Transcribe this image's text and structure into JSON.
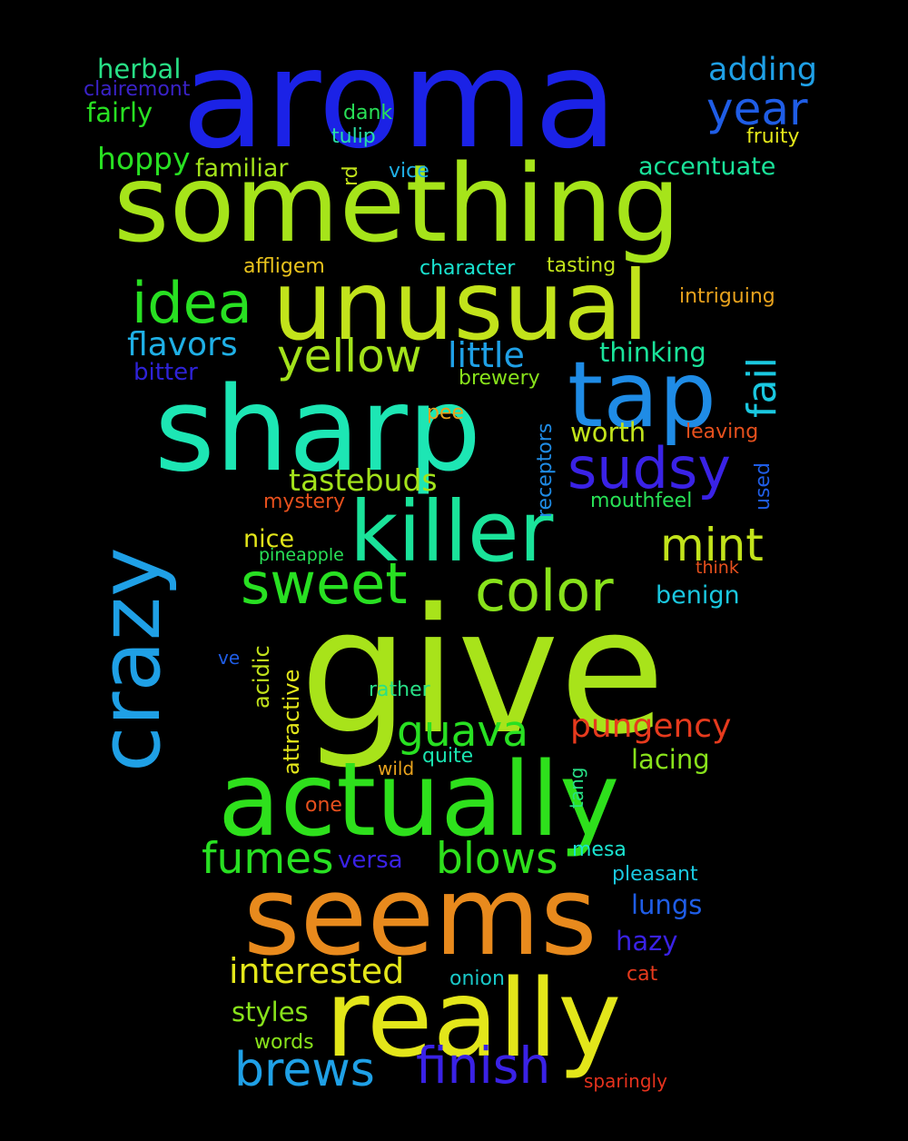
{
  "words": [
    {
      "text": "aroma",
      "color": "#1b22e6"
    },
    {
      "text": "something",
      "color": "#a6e41a"
    },
    {
      "text": "unusual",
      "color": "#c2e31b"
    },
    {
      "text": "sharp",
      "color": "#1de6b4"
    },
    {
      "text": "give",
      "color": "#a8e31a"
    },
    {
      "text": "killer",
      "color": "#1ae39a"
    },
    {
      "text": "crazy",
      "color": "#1fa0e6"
    },
    {
      "text": "actually",
      "color": "#2ee01c"
    },
    {
      "text": "seems",
      "color": "#e88a1d"
    },
    {
      "text": "really",
      "color": "#e3e61a"
    },
    {
      "text": "tap",
      "color": "#1f8ce6"
    },
    {
      "text": "sudsy",
      "color": "#3a22e6"
    },
    {
      "text": "idea",
      "color": "#28e022"
    },
    {
      "text": "yellow",
      "color": "#a2e21b"
    },
    {
      "text": "color",
      "color": "#88e21b"
    },
    {
      "text": "sweet",
      "color": "#28e022"
    },
    {
      "text": "mint",
      "color": "#c2e31b"
    },
    {
      "text": "finish",
      "color": "#3a22e6"
    },
    {
      "text": "brews",
      "color": "#1fa0e6"
    },
    {
      "text": "blows",
      "color": "#2ee01c"
    },
    {
      "text": "fumes",
      "color": "#28e022"
    },
    {
      "text": "guava",
      "color": "#28e022"
    },
    {
      "text": "pungency",
      "color": "#e63a1d"
    },
    {
      "text": "fail",
      "color": "#1ac8e0"
    },
    {
      "text": "year",
      "color": "#1f5de6"
    },
    {
      "text": "adding",
      "color": "#1fa0e6"
    },
    {
      "text": "little",
      "color": "#1fa0e6"
    },
    {
      "text": "flavors",
      "color": "#1fb0e6"
    },
    {
      "text": "interested",
      "color": "#e3e61a"
    },
    {
      "text": "tastebuds",
      "color": "#a2e21b"
    },
    {
      "text": "herbal",
      "color": "#28e086"
    },
    {
      "text": "hoppy",
      "color": "#28e022"
    },
    {
      "text": "fairly",
      "color": "#28e022"
    },
    {
      "text": "familiar",
      "color": "#a2e21b"
    },
    {
      "text": "accentuate",
      "color": "#1ae39a"
    },
    {
      "text": "thinking",
      "color": "#1ae39a"
    },
    {
      "text": "worth",
      "color": "#c2e31b"
    },
    {
      "text": "lacing",
      "color": "#88e21b"
    },
    {
      "text": "lungs",
      "color": "#1f5de6"
    },
    {
      "text": "hazy",
      "color": "#3a22e6"
    },
    {
      "text": "styles",
      "color": "#88e21b"
    },
    {
      "text": "nice",
      "color": "#e3e61a"
    },
    {
      "text": "benign",
      "color": "#1ac8e0"
    },
    {
      "text": "bitter",
      "color": "#2e22d8"
    },
    {
      "text": "clairemont",
      "color": "#3a22c8"
    },
    {
      "text": "dank",
      "color": "#28e056"
    },
    {
      "text": "tulip",
      "color": "#28e0a6"
    },
    {
      "text": "fruity",
      "color": "#e3e61a"
    },
    {
      "text": "vice",
      "color": "#1fb0e6"
    },
    {
      "text": "rd",
      "color": "#c2e31b"
    },
    {
      "text": "affligem",
      "color": "#e8c21d"
    },
    {
      "text": "character",
      "color": "#1ae3d0"
    },
    {
      "text": "tasting",
      "color": "#c2e31b"
    },
    {
      "text": "intriguing",
      "color": "#e8a21d"
    },
    {
      "text": "brewery",
      "color": "#88e21b"
    },
    {
      "text": "pee",
      "color": "#e8a21d"
    },
    {
      "text": "receptors",
      "color": "#1f8ce6"
    },
    {
      "text": "leaving",
      "color": "#e6501d"
    },
    {
      "text": "used",
      "color": "#1f5de6"
    },
    {
      "text": "mystery",
      "color": "#e6501d"
    },
    {
      "text": "mouthfeel",
      "color": "#28e056"
    },
    {
      "text": "pineapple",
      "color": "#28e056"
    },
    {
      "text": "think",
      "color": "#e6501d"
    },
    {
      "text": "acidic",
      "color": "#c2e31b"
    },
    {
      "text": "attractive",
      "color": "#e3e61a"
    },
    {
      "text": "ve",
      "color": "#1f5de6"
    },
    {
      "text": "rather",
      "color": "#28e086"
    },
    {
      "text": "quite",
      "color": "#1ae3b0"
    },
    {
      "text": "wild",
      "color": "#e8a21d"
    },
    {
      "text": "tang",
      "color": "#28e086"
    },
    {
      "text": "one",
      "color": "#e6501d"
    },
    {
      "text": "versa",
      "color": "#3a22e6"
    },
    {
      "text": "mesa",
      "color": "#1ae3d0"
    },
    {
      "text": "pleasant",
      "color": "#1ac8e0"
    },
    {
      "text": "onion",
      "color": "#1ac8c8"
    },
    {
      "text": "cat",
      "color": "#e63a1d"
    },
    {
      "text": "words",
      "color": "#88e21b"
    },
    {
      "text": "sparingly",
      "color": "#e6321d"
    }
  ]
}
